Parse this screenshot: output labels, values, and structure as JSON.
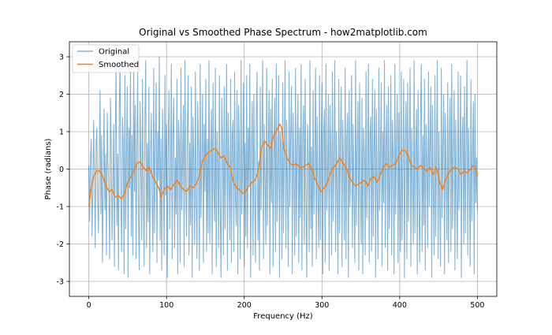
{
  "chart_data": {
    "type": "line",
    "title": "Original vs Smoothed Phase Spectrum - how2matplotlib.com",
    "xlabel": "Frequency (Hz)",
    "ylabel": "Phase (radians)",
    "xlim": [
      -25,
      525
    ],
    "ylim": [
      -3.4,
      3.4
    ],
    "x_ticks": [
      0,
      100,
      200,
      300,
      400,
      500
    ],
    "y_ticks": [
      -3,
      -2,
      -1,
      0,
      1,
      2,
      3
    ],
    "grid": true,
    "legend_position": "upper left",
    "x_range": [
      0,
      500
    ],
    "series": [
      {
        "name": "Original",
        "color": "#1f77b4",
        "alpha": 0.55,
        "values": [
          0.1,
          -1.4,
          0.3,
          0.8,
          -1.8,
          -0.6,
          1.3,
          -0.2,
          -2.1,
          0.6,
          1.1,
          -0.8,
          -1.7,
          0.2,
          2.1,
          -1.2,
          0.9,
          -2.5,
          -0.3,
          1.6,
          -1.1,
          0.4,
          -2.3,
          1.5,
          0.2,
          -0.7,
          -2.4,
          1.9,
          0.6,
          -1.9,
          -0.4,
          1.2,
          -2.6,
          0.8,
          2.8,
          -1.5,
          0.4,
          -2.7,
          1.6,
          2.9,
          -0.9,
          -2.2,
          1.4,
          0.7,
          -2.8,
          2.5,
          -1.6,
          0.3,
          2.2,
          -2.9,
          1.1,
          -0.5,
          2.7,
          -1.8,
          0.9,
          -2.3,
          3.0,
          -0.6,
          1.7,
          -2.4,
          0.5,
          2.6,
          -1.3,
          -2.7,
          1.8,
          0.2,
          -1.9,
          2.4,
          -0.8,
          -2.6,
          1.3,
          2.9,
          -2.1,
          0.7,
          -1.4,
          2.2,
          -2.8,
          0.4,
          1.5,
          -0.9,
          -2.2,
          2.7,
          -1.7,
          0.6,
          2.3,
          -2.5,
          1.0,
          -0.3,
          3.0,
          -1.9,
          0.8,
          -2.7,
          1.6,
          0.1,
          -2.3,
          2.5,
          -0.7,
          1.2,
          -2.9,
          0.5,
          2.1,
          -1.6,
          -0.2,
          2.8,
          -2.4,
          0.9,
          1.9,
          -2.1,
          0.3,
          -1.2,
          2.4,
          -2.8,
          1.3,
          0.6,
          -2.5,
          2.7,
          -1.1,
          0.2,
          1.7,
          -2.6,
          2.9,
          -0.4,
          -1.8,
          1.1,
          2.5,
          -2.3,
          0.7,
          -1.5,
          2.2,
          -2.9,
          1.4,
          0.3,
          -2.0,
          2.6,
          -0.9,
          -2.4,
          1.8,
          0.5,
          -2.7,
          2.8,
          -1.3,
          0.1,
          2.0,
          -2.5,
          1.2,
          -0.6,
          2.4,
          -2.2,
          0.8,
          -1.7,
          2.9,
          -2.0,
          0.4,
          1.6,
          -2.8,
          2.3,
          -0.5,
          -1.4,
          2.7,
          -2.6,
          1.0,
          0.2,
          -2.1,
          2.5,
          -1.0,
          -2.9,
          1.9,
          0.6,
          -2.3,
          2.2,
          -1.6,
          0.3,
          2.8,
          -2.7,
          1.5,
          -0.2,
          -1.9,
          2.4,
          -2.5,
          0.9,
          1.3,
          -2.2,
          2.6,
          -0.8,
          -1.5,
          2.1,
          -2.8,
          1.7,
          0.4,
          -2.4,
          2.9,
          -1.2,
          0.1,
          2.3,
          -2.6,
          0.7,
          -1.8,
          2.5,
          -2.1,
          1.1,
          -0.4,
          2.8,
          -2.9,
          0.5,
          1.8,
          -2.3,
          2.0,
          -0.7,
          -2.5,
          1.4,
          2.6,
          -1.9,
          0.2,
          -2.7,
          2.2,
          -1.1,
          0.8,
          2.9,
          -2.4,
          1.2,
          -0.3,
          -2.0,
          2.7,
          -1.5,
          0.6,
          2.1,
          -2.8,
          1.6,
          -0.9,
          2.4,
          -2.6,
          0.3,
          1.9,
          -2.2,
          2.8,
          -1.4,
          -0.1,
          2.5,
          -2.9,
          1.0,
          0.7,
          -2.4,
          2.3,
          -1.7,
          0.4,
          2.9,
          -2.1,
          1.3,
          -0.6,
          -2.6,
          2.6,
          -1.0,
          0.9,
          2.2,
          -2.8,
          1.5,
          -0.2,
          -2.3,
          2.7,
          -1.8,
          0.5,
          2.0,
          -2.5,
          1.1,
          -1.3,
          2.8,
          -2.7,
          0.8,
          1.7,
          -2.0,
          2.4,
          -0.8,
          -2.9,
          1.2,
          0.3,
          -2.2,
          2.9,
          -1.6,
          0.6,
          -2.6,
          2.1,
          -1.2,
          0.1,
          2.7,
          -2.4,
          1.4,
          -0.7,
          -2.1,
          2.5,
          -1.9,
          0.4,
          2.3,
          -2.8,
          0.9,
          1.6,
          -2.5,
          2.8,
          -1.1,
          -0.3,
          2.0,
          -2.7,
          1.7,
          0.5,
          -2.3,
          2.6,
          -1.4,
          0.2,
          2.9,
          -2.2,
          1.0,
          -0.5,
          -2.8,
          2.4,
          -1.7,
          0.7,
          2.2,
          -2.6,
          1.3,
          -0.1,
          -1.9,
          2.7,
          -2.4,
          0.8,
          1.5,
          -2.9,
          2.1,
          -1.0,
          0.3,
          2.5,
          -2.1,
          1.2,
          -0.8,
          -2.5,
          2.9,
          -1.5,
          0.6,
          1.8,
          -2.7,
          2.3,
          -0.4,
          -2.0,
          1.9,
          -2.8,
          1.1,
          0.4,
          -2.3,
          2.6,
          -1.3,
          -0.2,
          2.8,
          -2.5,
          0.9,
          1.4,
          -2.2,
          2.4,
          -1.8,
          0.5,
          2.1,
          -2.9,
          1.6,
          -0.6,
          -2.4,
          2.7,
          -1.1,
          0.2,
          2.3,
          -2.6,
          1.0,
          -0.9,
          2.9,
          -2.1,
          0.7,
          1.7,
          -2.7,
          2.2,
          -1.6,
          -0.3,
          2.5,
          -2.3,
          1.3,
          0.3,
          -2.8,
          2.8,
          -1.2,
          0.6,
          2.0,
          -2.5,
          1.5,
          -0.7,
          -2.2,
          2.6,
          -1.9,
          0.1,
          2.4,
          -2.9,
          0.8,
          1.8,
          -2.4,
          2.3,
          -1.4,
          0.4,
          2.7,
          -2.6,
          1.1,
          -0.4,
          -2.0,
          2.9,
          -1.7,
          0.5,
          1.6,
          -2.8,
          2.1,
          -0.9,
          -2.5,
          1.4,
          2.8,
          -2.2,
          0.9,
          -1.5,
          2.4,
          -2.7,
          1.2,
          0.2,
          -2.1,
          2.6,
          -1.0,
          0.7,
          2.2,
          -2.9,
          1.7,
          -0.5,
          -2.3,
          2.5,
          -1.8,
          0.3,
          2.9,
          -2.4,
          1.0,
          -0.8,
          -2.6,
          2.7,
          -1.3,
          0.6,
          2.0,
          -2.8,
          1.5,
          -0.2,
          -1.9,
          2.3,
          -2.5,
          0.8,
          1.9,
          -2.2,
          2.8,
          -1.6,
          0.4,
          2.1,
          -2.7,
          1.3,
          -0.6,
          -2.4,
          2.6,
          -1.1,
          0.1,
          2.5,
          -2.9,
          0.9,
          1.4,
          -2.0,
          2.2,
          -1.7,
          0.7,
          2.9,
          -2.3,
          1.1,
          -0.3,
          -2.6,
          2.4,
          -1.4,
          0.5,
          1.8,
          -2.8,
          2.0,
          -0.9,
          0.3,
          -1.1
        ]
      },
      {
        "name": "Smoothed",
        "color": "#ff7f0e",
        "alpha": 1.0,
        "points": [
          [
            0,
            -1.0
          ],
          [
            3,
            -0.5
          ],
          [
            6,
            -0.2
          ],
          [
            10,
            -0.05
          ],
          [
            14,
            -0.05
          ],
          [
            18,
            -0.2
          ],
          [
            22,
            -0.45
          ],
          [
            26,
            -0.6
          ],
          [
            30,
            -0.55
          ],
          [
            34,
            -0.75
          ],
          [
            38,
            -0.7
          ],
          [
            42,
            -0.8
          ],
          [
            46,
            -0.65
          ],
          [
            50,
            -0.35
          ],
          [
            54,
            -0.2
          ],
          [
            58,
            -0.05
          ],
          [
            62,
            0.15
          ],
          [
            66,
            0.2
          ],
          [
            70,
            0.05
          ],
          [
            74,
            -0.05
          ],
          [
            78,
            0.05
          ],
          [
            82,
            -0.2
          ],
          [
            86,
            -0.35
          ],
          [
            90,
            -0.5
          ],
          [
            93,
            -0.75
          ],
          [
            97,
            -0.55
          ],
          [
            101,
            -0.45
          ],
          [
            105,
            -0.55
          ],
          [
            110,
            -0.4
          ],
          [
            114,
            -0.3
          ],
          [
            118,
            -0.45
          ],
          [
            122,
            -0.55
          ],
          [
            126,
            -0.6
          ],
          [
            130,
            -0.45
          ],
          [
            134,
            -0.5
          ],
          [
            138,
            -0.4
          ],
          [
            142,
            -0.2
          ],
          [
            146,
            0.2
          ],
          [
            150,
            0.35
          ],
          [
            154,
            0.45
          ],
          [
            158,
            0.5
          ],
          [
            162,
            0.55
          ],
          [
            166,
            0.45
          ],
          [
            170,
            0.3
          ],
          [
            174,
            0.35
          ],
          [
            178,
            0.15
          ],
          [
            182,
            0.05
          ],
          [
            186,
            -0.35
          ],
          [
            190,
            -0.5
          ],
          [
            194,
            -0.55
          ],
          [
            198,
            -0.65
          ],
          [
            202,
            -0.6
          ],
          [
            206,
            -0.45
          ],
          [
            210,
            -0.35
          ],
          [
            214,
            -0.3
          ],
          [
            218,
            -0.05
          ],
          [
            222,
            0.55
          ],
          [
            226,
            0.75
          ],
          [
            230,
            0.65
          ],
          [
            234,
            0.55
          ],
          [
            238,
            0.9
          ],
          [
            242,
            1.05
          ],
          [
            246,
            1.2
          ],
          [
            248,
            1.1
          ],
          [
            251,
            0.55
          ],
          [
            255,
            0.3
          ],
          [
            259,
            0.15
          ],
          [
            263,
            0.1
          ],
          [
            267,
            0.15
          ],
          [
            271,
            0.05
          ],
          [
            275,
            0.05
          ],
          [
            279,
            0.1
          ],
          [
            283,
            0.15
          ],
          [
            287,
            0.0
          ],
          [
            291,
            -0.25
          ],
          [
            295,
            -0.45
          ],
          [
            299,
            -0.6
          ],
          [
            303,
            -0.5
          ],
          [
            307,
            -0.35
          ],
          [
            311,
            -0.1
          ],
          [
            315,
            0.05
          ],
          [
            319,
            0.15
          ],
          [
            323,
            0.3
          ],
          [
            327,
            0.15
          ],
          [
            331,
            0.05
          ],
          [
            335,
            -0.2
          ],
          [
            339,
            -0.35
          ],
          [
            343,
            -0.45
          ],
          [
            347,
            -0.4
          ],
          [
            351,
            -0.35
          ],
          [
            355,
            -0.3
          ],
          [
            359,
            -0.45
          ],
          [
            363,
            -0.25
          ],
          [
            367,
            -0.2
          ],
          [
            371,
            -0.35
          ],
          [
            375,
            -0.15
          ],
          [
            379,
            0.05
          ],
          [
            383,
            0.15
          ],
          [
            387,
            0.05
          ],
          [
            391,
            0.1
          ],
          [
            395,
            0.15
          ],
          [
            399,
            0.35
          ],
          [
            403,
            0.5
          ],
          [
            407,
            0.5
          ],
          [
            411,
            0.35
          ],
          [
            415,
            0.1
          ],
          [
            419,
            0.05
          ],
          [
            423,
            0.0
          ],
          [
            427,
            0.1
          ],
          [
            431,
            0.0
          ],
          [
            435,
            -0.05
          ],
          [
            439,
            0.05
          ],
          [
            443,
            -0.15
          ],
          [
            447,
            0.05
          ],
          [
            451,
            -0.3
          ],
          [
            455,
            -0.55
          ],
          [
            459,
            -0.3
          ],
          [
            463,
            -0.1
          ],
          [
            467,
            0.0
          ],
          [
            471,
            0.05
          ],
          [
            475,
            0.0
          ],
          [
            479,
            -0.15
          ],
          [
            483,
            -0.05
          ],
          [
            487,
            -0.1
          ],
          [
            491,
            0.0
          ],
          [
            495,
            0.1
          ],
          [
            498,
            0.0
          ],
          [
            500,
            -0.2
          ]
        ]
      }
    ]
  }
}
